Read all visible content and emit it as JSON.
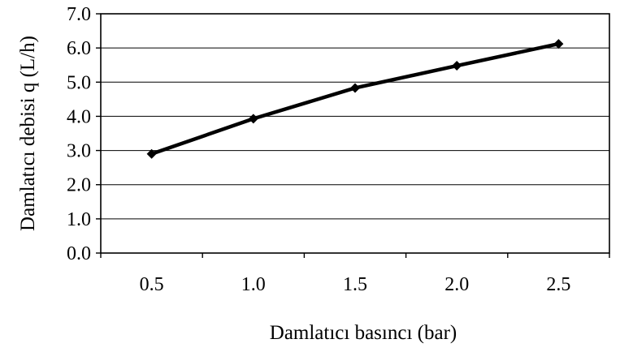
{
  "chart_data": {
    "type": "line",
    "categories": [
      "0.5",
      "1.0",
      "1.5",
      "2.0",
      "2.5"
    ],
    "series": [
      {
        "values": [
          2.9,
          3.93,
          4.83,
          5.48,
          6.12
        ]
      }
    ],
    "xlabel": "Damlatıcı basıncı (bar)",
    "ylabel": "Damlatıcı debisi q (L/h)",
    "ylim": [
      0,
      7
    ],
    "yticks": [
      "0.0",
      "1.0",
      "2.0",
      "3.0",
      "4.0",
      "5.0",
      "6.0",
      "7.0"
    ],
    "grid": "horizontal",
    "marker": "diamond",
    "line_color": "#000000"
  }
}
